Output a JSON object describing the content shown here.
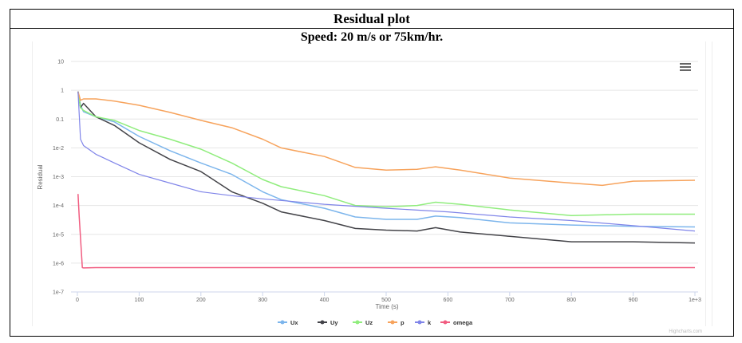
{
  "header": {
    "title": "Residual plot",
    "subtitle": "Speed: 20 m/s or 75km/hr."
  },
  "credit": "Highcharts.com",
  "chart_data": {
    "type": "line",
    "title": "",
    "xlabel": "Time (s)",
    "ylabel": "Residual",
    "y_scale": "log",
    "xlim": [
      0,
      1000
    ],
    "ylim": [
      1e-07,
      10
    ],
    "x_ticks": [
      {
        "v": 0,
        "label": "0"
      },
      {
        "v": 100,
        "label": "100"
      },
      {
        "v": 200,
        "label": "200"
      },
      {
        "v": 300,
        "label": "300"
      },
      {
        "v": 400,
        "label": "400"
      },
      {
        "v": 500,
        "label": "500"
      },
      {
        "v": 600,
        "label": "600"
      },
      {
        "v": 700,
        "label": "700"
      },
      {
        "v": 800,
        "label": "800"
      },
      {
        "v": 900,
        "label": "900"
      },
      {
        "v": 1000,
        "label": "1e+3"
      }
    ],
    "y_ticks": [
      {
        "v": 10,
        "label": "10"
      },
      {
        "v": 1,
        "label": "1"
      },
      {
        "v": 0.1,
        "label": "0.1"
      },
      {
        "v": 0.01,
        "label": "1e-2"
      },
      {
        "v": 0.001,
        "label": "1e-3"
      },
      {
        "v": 0.0001,
        "label": "1e-4"
      },
      {
        "v": 1e-05,
        "label": "1e-5"
      },
      {
        "v": 1e-06,
        "label": "1e-6"
      },
      {
        "v": 1e-07,
        "label": "1e-7"
      }
    ],
    "grid": true,
    "legend_position": "bottom-center",
    "series": [
      {
        "name": "Ux",
        "color": "#7cb5ec",
        "x": [
          1,
          5,
          10,
          30,
          60,
          100,
          150,
          200,
          250,
          300,
          330,
          400,
          450,
          500,
          550,
          580,
          620,
          700,
          800,
          900,
          1000
        ],
        "y": [
          0.9,
          0.3,
          0.18,
          0.12,
          0.08,
          0.025,
          0.008,
          0.003,
          0.0012,
          0.0003,
          0.00016,
          8e-05,
          4e-05,
          3.3e-05,
          3.3e-05,
          4.3e-05,
          3.8e-05,
          2.5e-05,
          2.1e-05,
          1.9e-05,
          1.8e-05
        ]
      },
      {
        "name": "Uy",
        "color": "#434348",
        "x": [
          1,
          5,
          10,
          30,
          60,
          100,
          150,
          200,
          250,
          300,
          330,
          400,
          450,
          500,
          550,
          580,
          620,
          700,
          800,
          900,
          1000
        ],
        "y": [
          0.9,
          0.25,
          0.35,
          0.12,
          0.06,
          0.015,
          0.004,
          0.0015,
          0.0003,
          0.00012,
          6e-05,
          3e-05,
          1.6e-05,
          1.4e-05,
          1.3e-05,
          1.7e-05,
          1.2e-05,
          8.5e-06,
          5.5e-06,
          5.5e-06,
          5e-06
        ]
      },
      {
        "name": "Uz",
        "color": "#90ed7d",
        "x": [
          1,
          5,
          10,
          30,
          60,
          100,
          150,
          200,
          250,
          300,
          330,
          400,
          450,
          500,
          550,
          580,
          620,
          700,
          800,
          900,
          1000
        ],
        "y": [
          0.9,
          0.25,
          0.2,
          0.12,
          0.09,
          0.04,
          0.02,
          0.009,
          0.003,
          0.0008,
          0.00045,
          0.00022,
          0.0001,
          9e-05,
          0.0001,
          0.00013,
          0.00011,
          7e-05,
          4.5e-05,
          5e-05,
          5e-05
        ]
      },
      {
        "name": "p",
        "color": "#f7a35c",
        "x": [
          1,
          5,
          10,
          30,
          60,
          100,
          150,
          200,
          250,
          300,
          330,
          400,
          450,
          500,
          550,
          580,
          620,
          700,
          800,
          850,
          900,
          1000
        ],
        "y": [
          0.9,
          0.45,
          0.5,
          0.5,
          0.42,
          0.3,
          0.17,
          0.09,
          0.05,
          0.02,
          0.01,
          0.005,
          0.0021,
          0.0017,
          0.0018,
          0.0022,
          0.0017,
          0.0009,
          0.0006,
          0.0005,
          0.0007,
          0.00075
        ]
      },
      {
        "name": "k",
        "color": "#8085e9",
        "x": [
          1,
          5,
          10,
          30,
          60,
          100,
          150,
          200,
          250,
          300,
          400,
          500,
          600,
          700,
          800,
          900,
          1000
        ],
        "y": [
          0.9,
          0.02,
          0.012,
          0.006,
          0.003,
          0.0012,
          0.0006,
          0.0003,
          0.00022,
          0.00017,
          0.00011,
          8e-05,
          6e-05,
          4e-05,
          3e-05,
          2e-05,
          1.3e-05
        ]
      },
      {
        "name": "omega",
        "color": "#f15c80",
        "x": [
          1,
          3,
          8,
          10,
          30,
          60,
          100,
          200,
          300,
          500,
          700,
          900,
          1000
        ],
        "y": [
          0.00025,
          4e-05,
          7e-07,
          6.8e-07,
          7e-07,
          7e-07,
          7e-07,
          7e-07,
          7e-07,
          7e-07,
          7e-07,
          7e-07,
          7e-07
        ]
      }
    ]
  }
}
